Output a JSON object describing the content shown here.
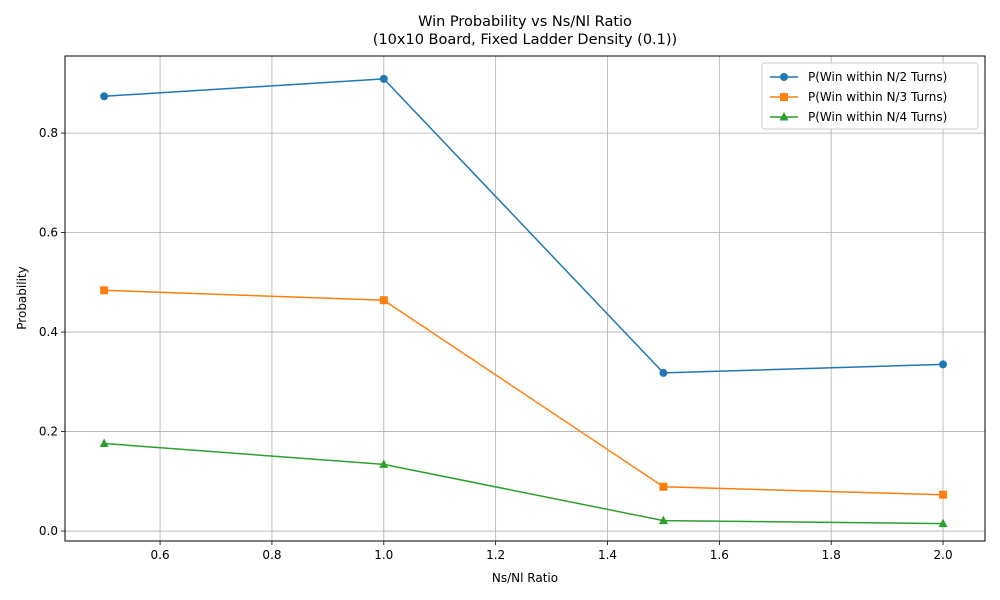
{
  "chart_data": {
    "type": "line",
    "title": "Win Probability vs Ns/Nl Ratio",
    "subtitle": "(10x10 Board, Fixed Ladder Density (0.1))",
    "xlabel": "Ns/Nl Ratio",
    "ylabel": "Probability",
    "x": [
      0.5,
      1.0,
      1.5,
      2.0
    ],
    "xlim": [
      0.43,
      2.075
    ],
    "ylim": [
      -0.02,
      0.955
    ],
    "xticks": [
      0.6,
      0.8,
      1.0,
      1.2,
      1.4,
      1.6,
      1.8,
      2.0
    ],
    "xtick_labels": [
      "0.6",
      "0.8",
      "1.0",
      "1.2",
      "1.4",
      "1.6",
      "1.8",
      "2.0"
    ],
    "yticks": [
      0.0,
      0.2,
      0.4,
      0.6,
      0.8
    ],
    "ytick_labels": [
      "0.0",
      "0.2",
      "0.4",
      "0.6",
      "0.8"
    ],
    "grid": true,
    "legend_position": "top-right",
    "series": [
      {
        "name": "P(Win within N/2 Turns)",
        "values": [
          0.874,
          0.909,
          0.318,
          0.335
        ],
        "color": "#1f77b4",
        "marker": "circle"
      },
      {
        "name": "P(Win within N/3 Turns)",
        "values": [
          0.484,
          0.464,
          0.089,
          0.073
        ],
        "color": "#ff7f0e",
        "marker": "square"
      },
      {
        "name": "P(Win within N/4 Turns)",
        "values": [
          0.176,
          0.134,
          0.021,
          0.015
        ],
        "color": "#2ca02c",
        "marker": "triangle"
      }
    ]
  }
}
